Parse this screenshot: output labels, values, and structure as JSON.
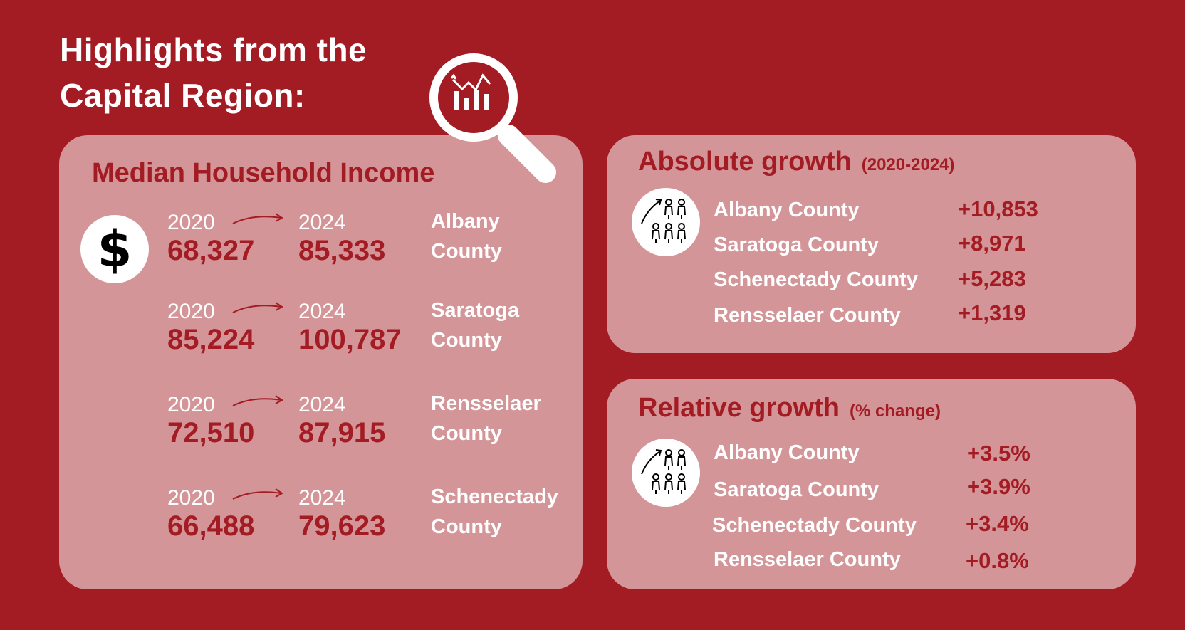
{
  "title": {
    "line1": "Highlights from the",
    "line2": "Capital Region:"
  },
  "income": {
    "heading": "Median Household Income",
    "icon": "dollar-icon",
    "rows": [
      {
        "year_from": "2020",
        "year_to": "2024",
        "value_from": "68,327",
        "value_to": "85,333",
        "county_line1": "Albany",
        "county_line2": "County"
      },
      {
        "year_from": "2020",
        "year_to": "2024",
        "value_from": "85,224",
        "value_to": "100,787",
        "county_line1": "Saratoga",
        "county_line2": "County"
      },
      {
        "year_from": "2020",
        "year_to": "2024",
        "value_from": "72,510",
        "value_to": "87,915",
        "county_line1": "Rensselaer",
        "county_line2": "County"
      },
      {
        "year_from": "2020",
        "year_to": "2024",
        "value_from": "66,488",
        "value_to": "79,623",
        "county_line1": "Schenectady",
        "county_line2": "County"
      }
    ]
  },
  "absolute": {
    "heading": "Absolute growth",
    "subheading": "(2020-2024)",
    "icon": "population-growth-icon",
    "rows": [
      {
        "name": "Albany County",
        "value": "+10,853"
      },
      {
        "name": "Saratoga County",
        "value": "+8,971"
      },
      {
        "name": "Schenectady County",
        "value": "+5,283"
      },
      {
        "name": "Rensselaer County",
        "value": "+1,319"
      }
    ]
  },
  "relative": {
    "heading": "Relative growth",
    "subheading": "(% change)",
    "icon": "population-growth-icon",
    "rows": [
      {
        "name": "Albany County",
        "value": "+3.5%"
      },
      {
        "name": "Saratoga County",
        "value": "+3.9%"
      },
      {
        "name": "Schenectady County",
        "value": "+3.4%"
      },
      {
        "name": "Rensselaer County",
        "value": "+0.8%"
      }
    ]
  },
  "colors": {
    "background": "#a31b23",
    "panel": "#d49598",
    "accent": "#a31b23",
    "text_light": "#ffffff"
  }
}
